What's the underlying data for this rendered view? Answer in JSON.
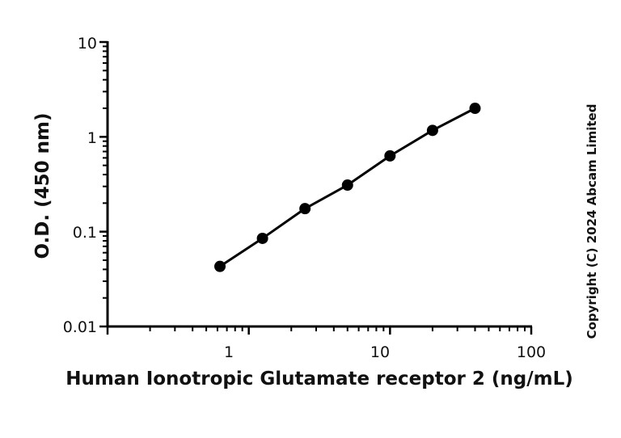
{
  "chart_data": {
    "type": "scatter",
    "x_scale": "log",
    "y_scale": "log",
    "xlim": [
      0.1,
      100
    ],
    "ylim": [
      0.01,
      10
    ],
    "xlabel": "Human Ionotropic Glutamate receptor 2 (ng/mL)",
    "ylabel": "O.D. (450 nm)",
    "x_tick_labels": [
      "1",
      "10",
      "100"
    ],
    "y_tick_labels": [
      "0.01",
      "0.1",
      "1",
      "10"
    ],
    "grid": false,
    "series": [
      {
        "x": [
          0.625,
          1.25,
          2.5,
          5,
          10,
          20,
          40
        ],
        "y": [
          0.043,
          0.085,
          0.175,
          0.31,
          0.63,
          1.17,
          2.0
        ],
        "color": "#000000",
        "marker": "circle",
        "connected": true
      }
    ]
  },
  "copyright": "Copyright (C) 2024 Abcam Limited"
}
